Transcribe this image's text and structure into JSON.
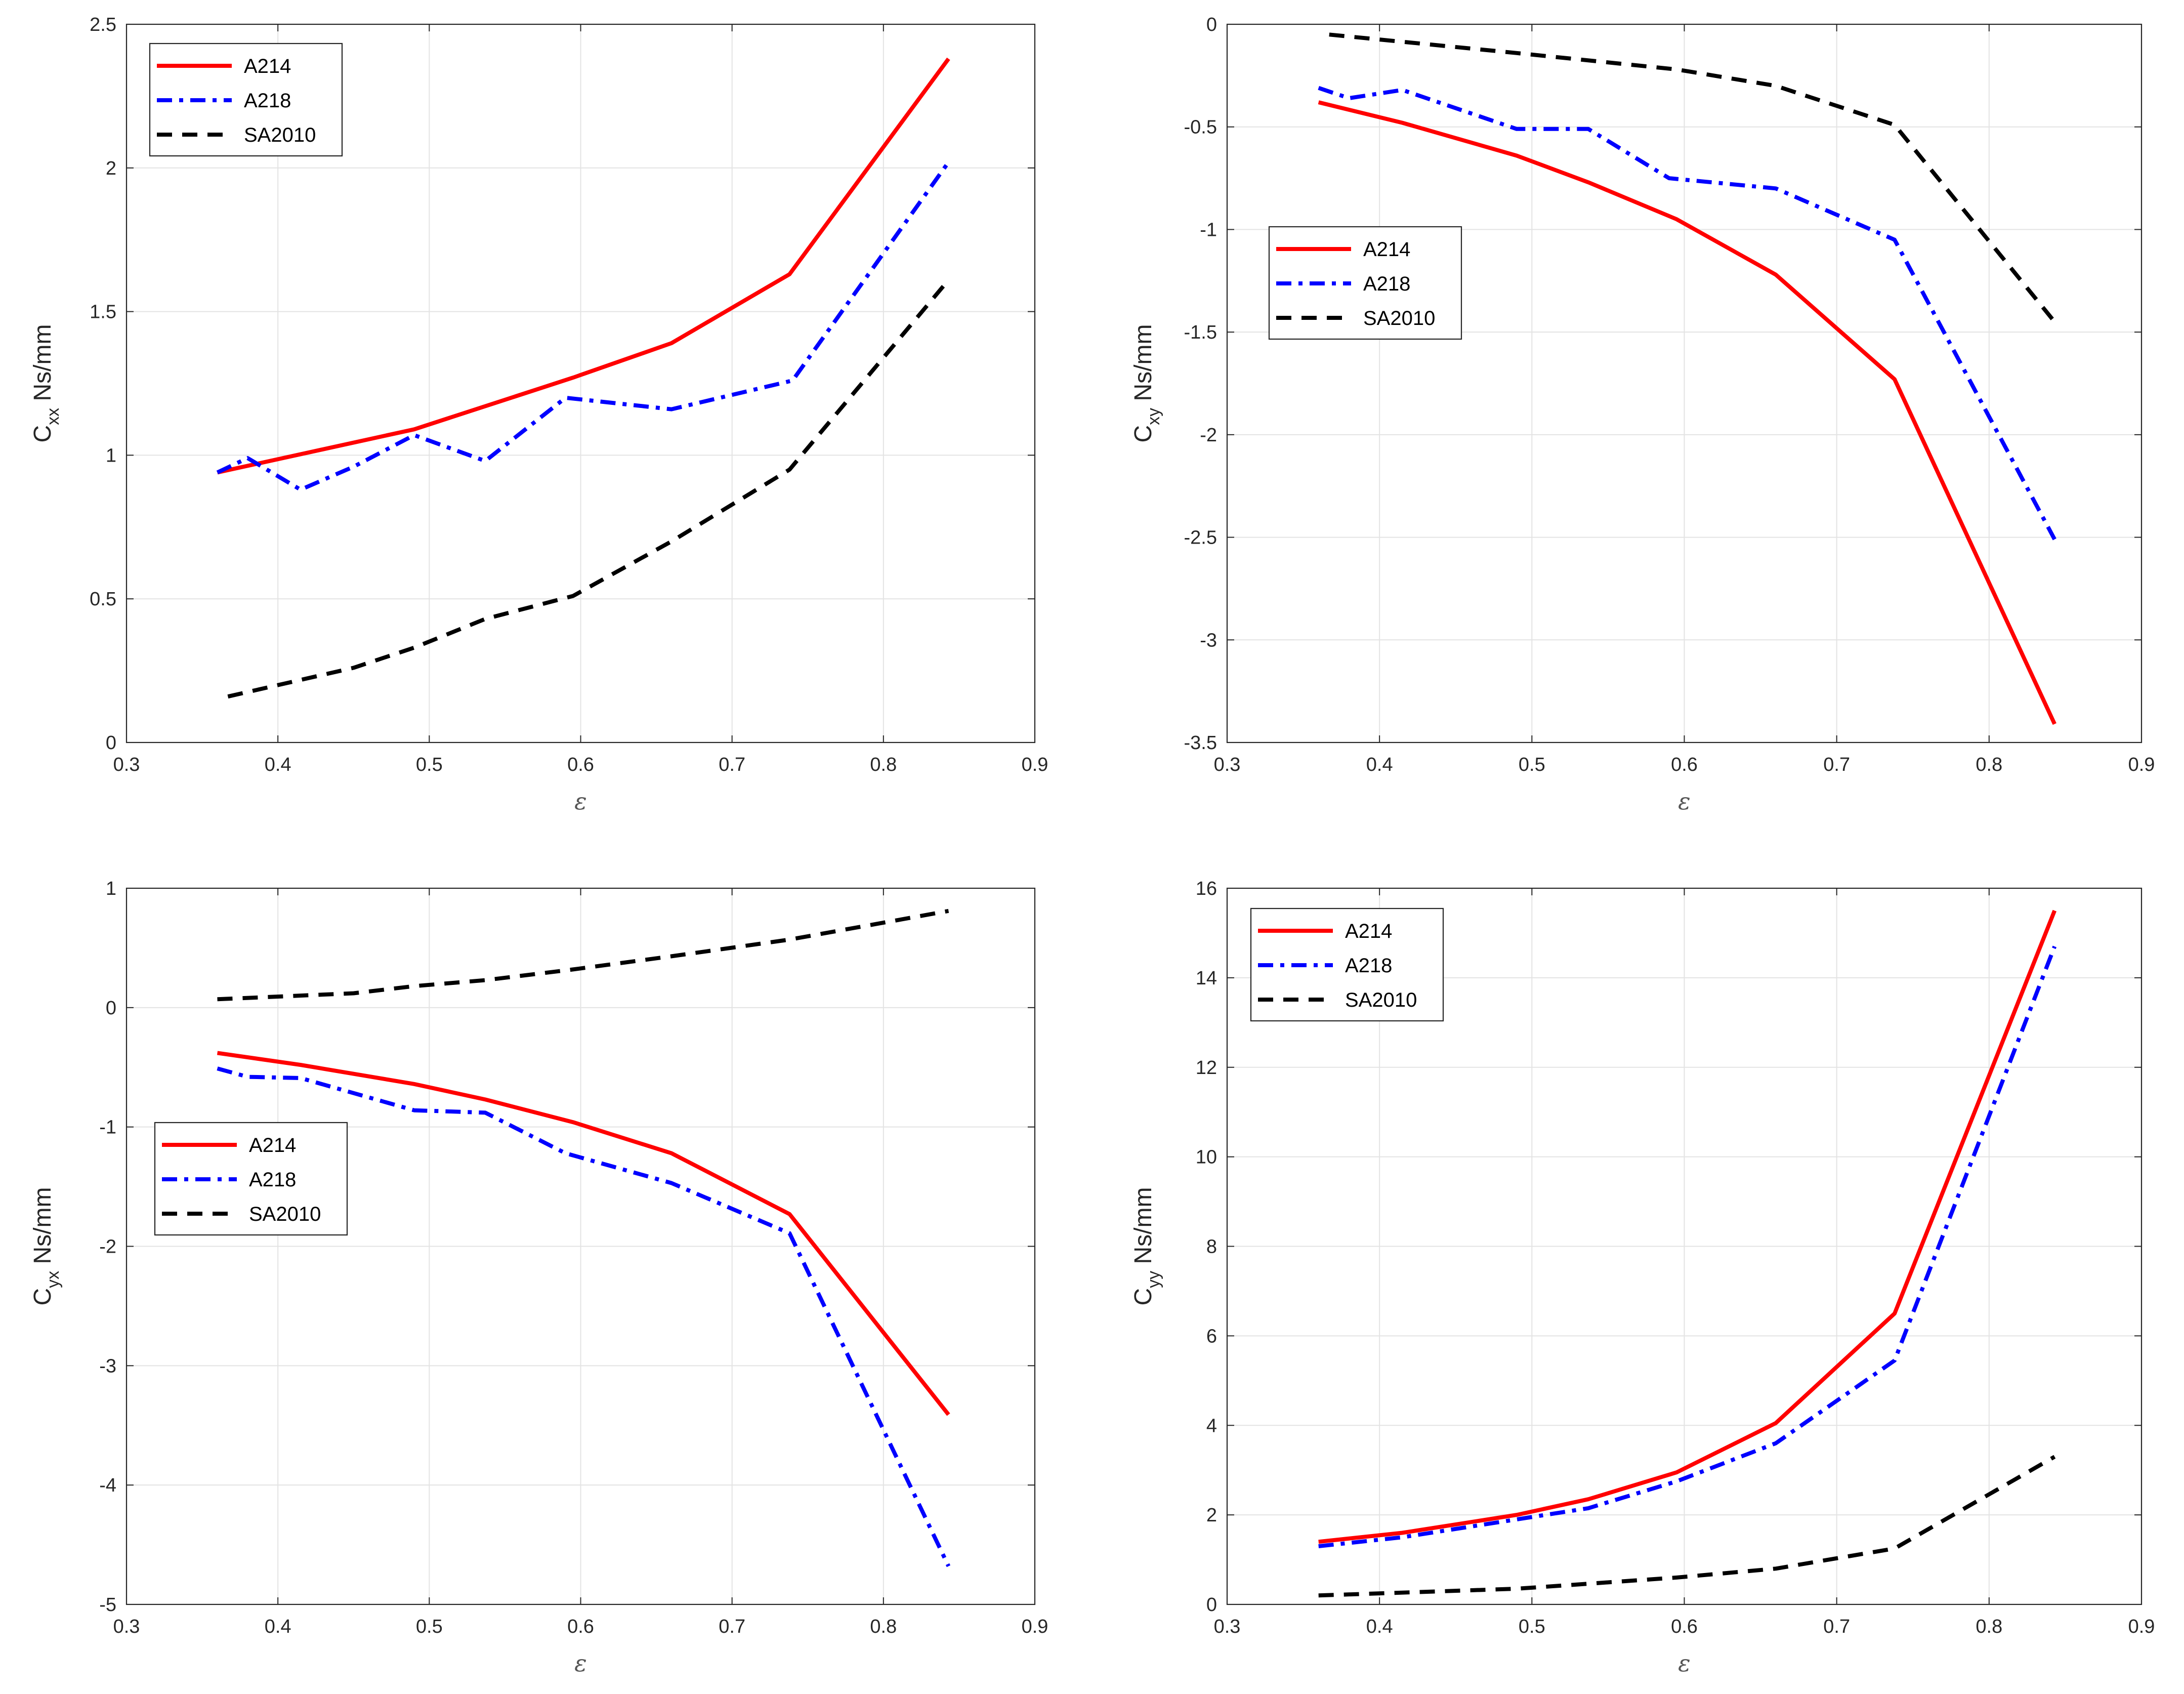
{
  "chart_data": [
    {
      "type": "line",
      "id": "cxx",
      "ylabel_main": "C",
      "ylabel_sub": "xx",
      "ylabel_unit": " Ns/mm",
      "xlabel": "ε",
      "xlim": [
        0.3,
        0.9
      ],
      "ylim": [
        0,
        2.5
      ],
      "xticks": [
        "0.3",
        "0.4",
        "0.5",
        "0.6",
        "0.7",
        "0.8",
        "0.9"
      ],
      "yticks": [
        "0",
        "0.5",
        "1",
        "1.5",
        "2",
        "2.5"
      ],
      "legend": "top-left",
      "series": [
        {
          "name": "A214",
          "color": "#ff0000",
          "style": "solid",
          "x": [
            0.36,
            0.49,
            0.595,
            0.66,
            0.738,
            0.843
          ],
          "y": [
            0.94,
            1.09,
            1.27,
            1.39,
            1.63,
            2.38
          ]
        },
        {
          "name": "A218",
          "color": "#0000ff",
          "style": "dashdot",
          "x": [
            0.36,
            0.38,
            0.415,
            0.45,
            0.49,
            0.537,
            0.59,
            0.66,
            0.74,
            0.843
          ],
          "y": [
            0.94,
            0.99,
            0.88,
            0.96,
            1.07,
            0.98,
            1.2,
            1.16,
            1.26,
            2.02
          ]
        },
        {
          "name": "SA2010",
          "color": "#000000",
          "style": "dashed",
          "x": [
            0.367,
            0.45,
            0.49,
            0.537,
            0.595,
            0.66,
            0.738,
            0.843
          ],
          "y": [
            0.16,
            0.26,
            0.33,
            0.43,
            0.51,
            0.7,
            0.95,
            1.61
          ]
        }
      ]
    },
    {
      "type": "line",
      "id": "cxy",
      "ylabel_main": "C",
      "ylabel_sub": "xy",
      "ylabel_unit": " Ns/mm",
      "xlabel": "ε",
      "xlim": [
        0.3,
        0.9
      ],
      "ylim": [
        -3.5,
        0
      ],
      "xticks": [
        "0.3",
        "0.4",
        "0.5",
        "0.6",
        "0.7",
        "0.8",
        "0.9"
      ],
      "yticks": [
        "-3.5",
        "-3",
        "-2.5",
        "-2",
        "-1.5",
        "-1",
        "-0.5",
        "0"
      ],
      "legend": "middle-left",
      "series": [
        {
          "name": "A214",
          "color": "#ff0000",
          "style": "solid",
          "x": [
            0.36,
            0.415,
            0.49,
            0.537,
            0.595,
            0.66,
            0.738,
            0.843
          ],
          "y": [
            -0.38,
            -0.48,
            -0.64,
            -0.77,
            -0.95,
            -1.22,
            -1.73,
            -3.41
          ]
        },
        {
          "name": "A218",
          "color": "#0000ff",
          "style": "dashdot",
          "x": [
            0.36,
            0.38,
            0.415,
            0.49,
            0.537,
            0.59,
            0.66,
            0.738,
            0.843
          ],
          "y": [
            -0.31,
            -0.36,
            -0.32,
            -0.51,
            -0.51,
            -0.75,
            -0.8,
            -1.05,
            -2.51
          ]
        },
        {
          "name": "SA2010",
          "color": "#000000",
          "style": "dashed",
          "x": [
            0.367,
            0.49,
            0.595,
            0.66,
            0.738,
            0.843
          ],
          "y": [
            -0.05,
            -0.14,
            -0.22,
            -0.3,
            -0.49,
            -1.45
          ]
        }
      ]
    },
    {
      "type": "line",
      "id": "cyx",
      "ylabel_main": "C",
      "ylabel_sub": "yx",
      "ylabel_unit": " Ns/mm",
      "xlabel": "ε",
      "xlim": [
        0.3,
        0.9
      ],
      "ylim": [
        -5,
        1
      ],
      "xticks": [
        "0.3",
        "0.4",
        "0.5",
        "0.6",
        "0.7",
        "0.8",
        "0.9"
      ],
      "yticks": [
        "-5",
        "-4",
        "-3",
        "-2",
        "-1",
        "0",
        "1"
      ],
      "legend": "middle-left",
      "series": [
        {
          "name": "A214",
          "color": "#ff0000",
          "style": "solid",
          "x": [
            0.36,
            0.415,
            0.49,
            0.537,
            0.595,
            0.66,
            0.738,
            0.843
          ],
          "y": [
            -0.38,
            -0.48,
            -0.64,
            -0.77,
            -0.96,
            -1.22,
            -1.73,
            -3.41
          ]
        },
        {
          "name": "A218",
          "color": "#0000ff",
          "style": "dashdot",
          "x": [
            0.36,
            0.38,
            0.415,
            0.49,
            0.537,
            0.59,
            0.66,
            0.738,
            0.843
          ],
          "y": [
            -0.51,
            -0.58,
            -0.59,
            -0.86,
            -0.88,
            -1.22,
            -1.47,
            -1.89,
            -4.68
          ]
        },
        {
          "name": "SA2010",
          "color": "#000000",
          "style": "dashed",
          "x": [
            0.36,
            0.45,
            0.49,
            0.537,
            0.595,
            0.66,
            0.738,
            0.843
          ],
          "y": [
            0.07,
            0.12,
            0.18,
            0.23,
            0.32,
            0.43,
            0.57,
            0.81
          ]
        }
      ]
    },
    {
      "type": "line",
      "id": "cyy",
      "ylabel_main": "C",
      "ylabel_sub": "yy",
      "ylabel_unit": " Ns/mm",
      "xlabel": "ε",
      "xlim": [
        0.3,
        0.9
      ],
      "ylim": [
        0,
        16
      ],
      "xticks": [
        "0.3",
        "0.4",
        "0.5",
        "0.6",
        "0.7",
        "0.8",
        "0.9"
      ],
      "yticks": [
        "0",
        "2",
        "4",
        "6",
        "8",
        "10",
        "12",
        "14",
        "16"
      ],
      "legend": "top-left",
      "series": [
        {
          "name": "A214",
          "color": "#ff0000",
          "style": "solid",
          "x": [
            0.36,
            0.415,
            0.49,
            0.537,
            0.595,
            0.66,
            0.738,
            0.843
          ],
          "y": [
            1.4,
            1.6,
            2.0,
            2.35,
            2.95,
            4.05,
            6.5,
            15.5
          ]
        },
        {
          "name": "A218",
          "color": "#0000ff",
          "style": "dashdot",
          "x": [
            0.36,
            0.415,
            0.49,
            0.537,
            0.595,
            0.66,
            0.738,
            0.843
          ],
          "y": [
            1.3,
            1.5,
            1.9,
            2.15,
            2.75,
            3.6,
            5.45,
            14.7
          ]
        },
        {
          "name": "SA2010",
          "color": "#000000",
          "style": "dashed",
          "x": [
            0.36,
            0.49,
            0.595,
            0.66,
            0.738,
            0.843
          ],
          "y": [
            0.2,
            0.35,
            0.6,
            0.8,
            1.25,
            3.3
          ]
        }
      ]
    }
  ]
}
